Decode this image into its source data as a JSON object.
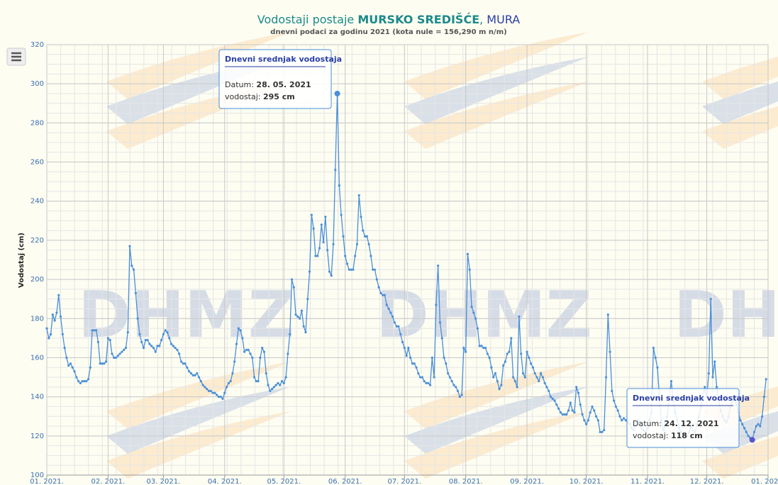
{
  "chart_data": {
    "type": "line",
    "title_parts": [
      "Vodostaji postaje ",
      "MURSKO SREDIŠĆE",
      ", ",
      "MURA"
    ],
    "subtitle": "dnevni podaci za godinu 2021 (kota nule = 156,290 m n/m)",
    "y_label": "Vodostaj (cm)",
    "watermark": "DHMZ",
    "color": "#4a8fd8",
    "grid": true,
    "ylim": [
      100,
      320
    ],
    "yticks": [
      100,
      120,
      140,
      160,
      180,
      200,
      220,
      240,
      260,
      280,
      300,
      320
    ],
    "xlim": [
      "2021-01-01",
      "2022-01-01"
    ],
    "xticks": [
      {
        "value": "2021-01-01",
        "label": "01. 2021."
      },
      {
        "value": "2021-02-01",
        "label": "02. 2021."
      },
      {
        "value": "2021-03-01",
        "label": "03. 2021."
      },
      {
        "value": "2021-04-01",
        "label": "04. 2021."
      },
      {
        "value": "2021-05-01",
        "label": "05. 2021."
      },
      {
        "value": "2021-06-01",
        "label": "06. 2021."
      },
      {
        "value": "2021-07-01",
        "label": "07. 2021."
      },
      {
        "value": "2021-08-01",
        "label": "08. 2021."
      },
      {
        "value": "2021-09-01",
        "label": "09. 2021."
      },
      {
        "value": "2021-10-01",
        "label": "10. 2021."
      },
      {
        "value": "2021-11-01",
        "label": "11. 2021."
      },
      {
        "value": "2021-12-01",
        "label": "12. 2021."
      },
      {
        "value": "2022-01-01",
        "label": "01. 2022."
      }
    ],
    "x": [
      "2021-01-01",
      "2021-01-02",
      "2021-01-03",
      "2021-01-04",
      "2021-01-05",
      "2021-01-06",
      "2021-01-07",
      "2021-01-08",
      "2021-01-09",
      "2021-01-10",
      "2021-01-11",
      "2021-01-12",
      "2021-01-13",
      "2021-01-14",
      "2021-01-15",
      "2021-01-16",
      "2021-01-17",
      "2021-01-18",
      "2021-01-19",
      "2021-01-20",
      "2021-01-21",
      "2021-01-22",
      "2021-01-23",
      "2021-01-24",
      "2021-01-25",
      "2021-01-26",
      "2021-01-27",
      "2021-01-28",
      "2021-01-29",
      "2021-01-30",
      "2021-01-31",
      "2021-02-01",
      "2021-02-02",
      "2021-02-03",
      "2021-02-04",
      "2021-02-05",
      "2021-02-06",
      "2021-02-07",
      "2021-02-08",
      "2021-02-09",
      "2021-02-10",
      "2021-02-11",
      "2021-02-12",
      "2021-02-13",
      "2021-02-14",
      "2021-02-15",
      "2021-02-16",
      "2021-02-17",
      "2021-02-18",
      "2021-02-19",
      "2021-02-20",
      "2021-02-21",
      "2021-02-22",
      "2021-02-23",
      "2021-02-24",
      "2021-02-25",
      "2021-02-26",
      "2021-02-27",
      "2021-02-28",
      "2021-03-01",
      "2021-03-02",
      "2021-03-03",
      "2021-03-04",
      "2021-03-05",
      "2021-03-06",
      "2021-03-07",
      "2021-03-08",
      "2021-03-09",
      "2021-03-10",
      "2021-03-11",
      "2021-03-12",
      "2021-03-13",
      "2021-03-14",
      "2021-03-15",
      "2021-03-16",
      "2021-03-17",
      "2021-03-18",
      "2021-03-19",
      "2021-03-20",
      "2021-03-21",
      "2021-03-22",
      "2021-03-23",
      "2021-03-24",
      "2021-03-25",
      "2021-03-26",
      "2021-03-27",
      "2021-03-28",
      "2021-03-29",
      "2021-03-30",
      "2021-03-31",
      "2021-04-01",
      "2021-04-02",
      "2021-04-03",
      "2021-04-04",
      "2021-04-05",
      "2021-04-06",
      "2021-04-07",
      "2021-04-08",
      "2021-04-09",
      "2021-04-10",
      "2021-04-11",
      "2021-04-12",
      "2021-04-13",
      "2021-04-14",
      "2021-04-15",
      "2021-04-16",
      "2021-04-17",
      "2021-04-18",
      "2021-04-19",
      "2021-04-20",
      "2021-04-21",
      "2021-04-22",
      "2021-04-23",
      "2021-04-24",
      "2021-04-25",
      "2021-04-26",
      "2021-04-27",
      "2021-04-28",
      "2021-04-29",
      "2021-04-30",
      "2021-05-01",
      "2021-05-02",
      "2021-05-03",
      "2021-05-04",
      "2021-05-05",
      "2021-05-06",
      "2021-05-07",
      "2021-05-08",
      "2021-05-09",
      "2021-05-10",
      "2021-05-11",
      "2021-05-12",
      "2021-05-13",
      "2021-05-14",
      "2021-05-15",
      "2021-05-16",
      "2021-05-17",
      "2021-05-18",
      "2021-05-19",
      "2021-05-20",
      "2021-05-21",
      "2021-05-22",
      "2021-05-23",
      "2021-05-24",
      "2021-05-25",
      "2021-05-26",
      "2021-05-27",
      "2021-05-28",
      "2021-05-29",
      "2021-05-30",
      "2021-05-31",
      "2021-06-01",
      "2021-06-02",
      "2021-06-03",
      "2021-06-04",
      "2021-06-05",
      "2021-06-06",
      "2021-06-07",
      "2021-06-08",
      "2021-06-09",
      "2021-06-10",
      "2021-06-11",
      "2021-06-12",
      "2021-06-13",
      "2021-06-14",
      "2021-06-15",
      "2021-06-16",
      "2021-06-17",
      "2021-06-18",
      "2021-06-19",
      "2021-06-20",
      "2021-06-21",
      "2021-06-22",
      "2021-06-23",
      "2021-06-24",
      "2021-06-25",
      "2021-06-26",
      "2021-06-27",
      "2021-06-28",
      "2021-06-29",
      "2021-06-30",
      "2021-07-01",
      "2021-07-02",
      "2021-07-03",
      "2021-07-04",
      "2021-07-05",
      "2021-07-06",
      "2021-07-07",
      "2021-07-08",
      "2021-07-09",
      "2021-07-10",
      "2021-07-11",
      "2021-07-12",
      "2021-07-13",
      "2021-07-14",
      "2021-07-15",
      "2021-07-16",
      "2021-07-17",
      "2021-07-18",
      "2021-07-19",
      "2021-07-20",
      "2021-07-21",
      "2021-07-22",
      "2021-07-23",
      "2021-07-24",
      "2021-07-25",
      "2021-07-26",
      "2021-07-27",
      "2021-07-28",
      "2021-07-29",
      "2021-07-30",
      "2021-07-31",
      "2021-08-01",
      "2021-08-02",
      "2021-08-03",
      "2021-08-04",
      "2021-08-05",
      "2021-08-06",
      "2021-08-07",
      "2021-08-08",
      "2021-08-09",
      "2021-08-10",
      "2021-08-11",
      "2021-08-12",
      "2021-08-13",
      "2021-08-14",
      "2021-08-15",
      "2021-08-16",
      "2021-08-17",
      "2021-08-18",
      "2021-08-19",
      "2021-08-20",
      "2021-08-21",
      "2021-08-22",
      "2021-08-23",
      "2021-08-24",
      "2021-08-25",
      "2021-08-26",
      "2021-08-27",
      "2021-08-28",
      "2021-08-29",
      "2021-08-30",
      "2021-08-31",
      "2021-09-01",
      "2021-09-02",
      "2021-09-03",
      "2021-09-04",
      "2021-09-05",
      "2021-09-06",
      "2021-09-07",
      "2021-09-08",
      "2021-09-09",
      "2021-09-10",
      "2021-09-11",
      "2021-09-12",
      "2021-09-13",
      "2021-09-14",
      "2021-09-15",
      "2021-09-16",
      "2021-09-17",
      "2021-09-18",
      "2021-09-19",
      "2021-09-20",
      "2021-09-21",
      "2021-09-22",
      "2021-09-23",
      "2021-09-24",
      "2021-09-25",
      "2021-09-26",
      "2021-09-27",
      "2021-09-28",
      "2021-09-29",
      "2021-09-30",
      "2021-10-01",
      "2021-10-02",
      "2021-10-03",
      "2021-10-04",
      "2021-10-05",
      "2021-10-06",
      "2021-10-07",
      "2021-10-08",
      "2021-10-09",
      "2021-10-10",
      "2021-10-11",
      "2021-10-12",
      "2021-10-13",
      "2021-10-14",
      "2021-10-15",
      "2021-10-16",
      "2021-10-17",
      "2021-10-18",
      "2021-10-19",
      "2021-10-20",
      "2021-10-21",
      "2021-10-22",
      "2021-10-23",
      "2021-10-24",
      "2021-10-25",
      "2021-10-26",
      "2021-10-27",
      "2021-10-28",
      "2021-10-29",
      "2021-10-30",
      "2021-10-31",
      "2021-11-01",
      "2021-11-02",
      "2021-11-03",
      "2021-11-04",
      "2021-11-05",
      "2021-11-06",
      "2021-11-07",
      "2021-11-08",
      "2021-11-09",
      "2021-11-10",
      "2021-11-11",
      "2021-11-12",
      "2021-11-13",
      "2021-11-14",
      "2021-11-15",
      "2021-11-16",
      "2021-11-17",
      "2021-11-18",
      "2021-11-19",
      "2021-11-20",
      "2021-11-21",
      "2021-11-22",
      "2021-11-23",
      "2021-11-24",
      "2021-11-25",
      "2021-11-26",
      "2021-11-27",
      "2021-11-28",
      "2021-11-29",
      "2021-11-30",
      "2021-12-01",
      "2021-12-02",
      "2021-12-03",
      "2021-12-04",
      "2021-12-05",
      "2021-12-06",
      "2021-12-07",
      "2021-12-08",
      "2021-12-09",
      "2021-12-10",
      "2021-12-11",
      "2021-12-12",
      "2021-12-13",
      "2021-12-14",
      "2021-12-15",
      "2021-12-16",
      "2021-12-17",
      "2021-12-18",
      "2021-12-19",
      "2021-12-20",
      "2021-12-21",
      "2021-12-22",
      "2021-12-23",
      "2021-12-24",
      "2021-12-25",
      "2021-12-26",
      "2021-12-27",
      "2021-12-28",
      "2021-12-29",
      "2021-12-30",
      "2021-12-31"
    ],
    "values": [
      175,
      170,
      172,
      182,
      179,
      183,
      192,
      181,
      172,
      165,
      160,
      156,
      157,
      155,
      153,
      150,
      148,
      147,
      148,
      148,
      148,
      149,
      155,
      174,
      174,
      174,
      168,
      157,
      157,
      157,
      158,
      170,
      169,
      162,
      160,
      160,
      161,
      162,
      163,
      164,
      165,
      173,
      217,
      207,
      205,
      193,
      180,
      172,
      168,
      165,
      169,
      169,
      167,
      166,
      165,
      163,
      166,
      166,
      169,
      172,
      174,
      173,
      170,
      167,
      166,
      165,
      164,
      162,
      158,
      157,
      157,
      155,
      153,
      152,
      151,
      151,
      152,
      150,
      148,
      146,
      145,
      144,
      143,
      143,
      142,
      142,
      141,
      140,
      140,
      139,
      142,
      145,
      147,
      148,
      152,
      158,
      167,
      175,
      174,
      170,
      163,
      164,
      164,
      162,
      160,
      150,
      148,
      148,
      160,
      165,
      163,
      152,
      146,
      143,
      144,
      145,
      146,
      147,
      146,
      148,
      147,
      150,
      162,
      172,
      200,
      196,
      182,
      181,
      180,
      184,
      176,
      173,
      190,
      204,
      233,
      226,
      212,
      212,
      216,
      228,
      219,
      232,
      215,
      204,
      202,
      218,
      256,
      295,
      248,
      233,
      222,
      212,
      208,
      205,
      205,
      205,
      212,
      218,
      243,
      232,
      225,
      222,
      222,
      218,
      212,
      205,
      205,
      200,
      196,
      193,
      192,
      192,
      187,
      185,
      183,
      181,
      178,
      176,
      176,
      172,
      168,
      165,
      161,
      165,
      160,
      157,
      157,
      155,
      152,
      150,
      150,
      148,
      147,
      147,
      146,
      160,
      150,
      187,
      207,
      178,
      170,
      160,
      157,
      152,
      150,
      148,
      146,
      145,
      143,
      140,
      141,
      165,
      163,
      213,
      205,
      186,
      183,
      180,
      175,
      166,
      166,
      165,
      165,
      162,
      160,
      155,
      150,
      152,
      148,
      144,
      146,
      156,
      158,
      162,
      163,
      170,
      150,
      148,
      145,
      181,
      162,
      152,
      150,
      163,
      160,
      157,
      155,
      152,
      150,
      148,
      152,
      150,
      147,
      145,
      143,
      140,
      139,
      138,
      136,
      134,
      132,
      131,
      131,
      131,
      133,
      137,
      133,
      132,
      145,
      142,
      136,
      131,
      128,
      126,
      128,
      132,
      135,
      133,
      130,
      128,
      122,
      122,
      123,
      150,
      182,
      163,
      143,
      138,
      135,
      133,
      130,
      128,
      129,
      128,
      127,
      126,
      124,
      123,
      125,
      128,
      127,
      124,
      123,
      122,
      124,
      128,
      132,
      165,
      160,
      155,
      140,
      128,
      123,
      126,
      130,
      140,
      148,
      138,
      132,
      128,
      124,
      122,
      120,
      121,
      120,
      122,
      125,
      123,
      122,
      126,
      130,
      135,
      140,
      145,
      140,
      152,
      190,
      150,
      158,
      145,
      138,
      133,
      130,
      128,
      127,
      130,
      135,
      138,
      140,
      136,
      132,
      128,
      126,
      124,
      122,
      120,
      119,
      118,
      122,
      125,
      126,
      125,
      130,
      140,
      149
    ],
    "tooltips": [
      {
        "title": "Dnevni srednjak vodostaja",
        "date_label": "Datum:",
        "date": "28. 05. 2021",
        "value_label": "vodostaj:",
        "value": "295 cm",
        "marker_color": "#4a8fd8"
      },
      {
        "title": "Dnevni srednjak vodostaja",
        "date_label": "Datum:",
        "date": "24. 12. 2021",
        "value_label": "vodostaj:",
        "value": "118 cm",
        "marker_color": "#5b55c9"
      }
    ]
  }
}
